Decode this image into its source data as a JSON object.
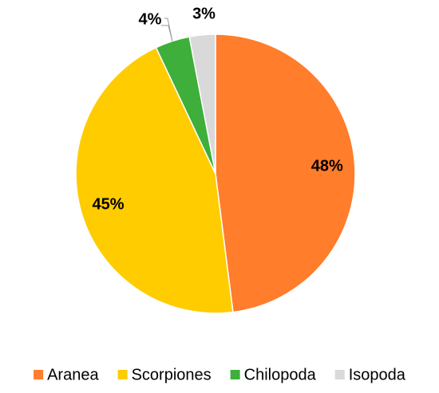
{
  "chart_data": {
    "type": "pie",
    "categories": [
      "Aranea",
      "Scorpiones",
      "Chilopoda",
      "Isopoda"
    ],
    "values": [
      48,
      45,
      4,
      3
    ],
    "value_labels": [
      "48%",
      "45%",
      "4%",
      "3%"
    ],
    "colors": [
      "#FF7D2B",
      "#FFCC00",
      "#3DAF3A",
      "#D9D9D9"
    ],
    "legend": "bottom"
  }
}
